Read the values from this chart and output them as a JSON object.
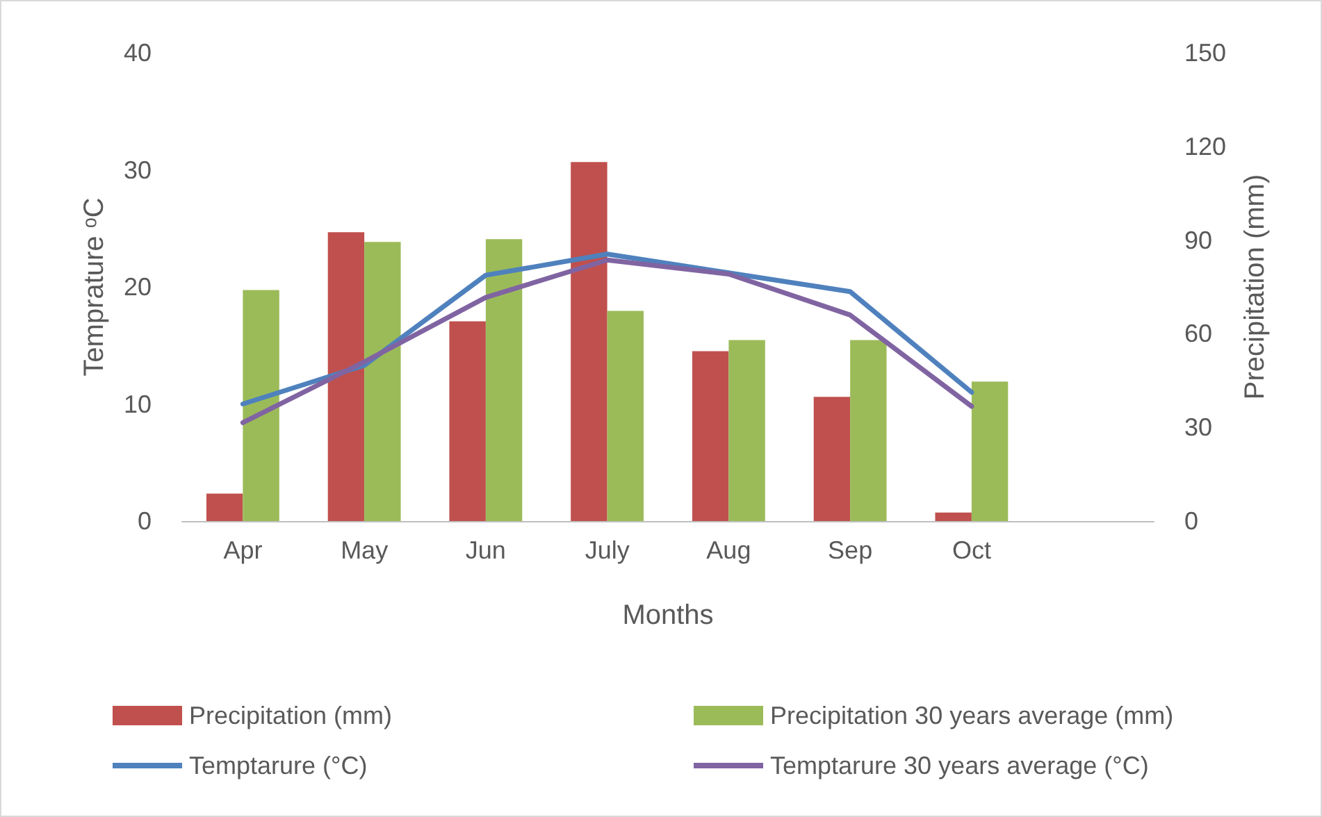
{
  "chart_data": {
    "type": "bar",
    "xlabel": "Months",
    "ylabel": "Temprature ᵒC",
    "y2label": "Precipitation (mm)",
    "categories": [
      "Apr",
      "May",
      "Jun",
      "July",
      "Aug",
      "Sep",
      "Oct",
      null
    ],
    "series": [
      {
        "name": "Precipitation (mm)",
        "axis": "y2",
        "color": "#c0504d",
        "values": [
          8.8,
          92.5,
          64,
          115,
          54.4,
          39.8,
          2.7,
          null
        ]
      },
      {
        "name": "Precipitation 30 years average (mm)",
        "axis": "y2",
        "color": "#9bbb59",
        "values": [
          74,
          89.4,
          90.3,
          67.3,
          58,
          58,
          44.7,
          null
        ]
      },
      {
        "name": "Temptarure (°C)",
        "type": "line",
        "color": "#4f81bd",
        "values": [
          10.0,
          13.3,
          21.0,
          22.8,
          21.2,
          19.6,
          11.0,
          null
        ]
      },
      {
        "name": "Temptarure 30 years average (°C)",
        "type": "line",
        "color": "#8064a2",
        "values": [
          8.4,
          13.6,
          19.1,
          22.3,
          21.1,
          17.6,
          9.8,
          null
        ]
      }
    ],
    "ylim": [
      0,
      40
    ],
    "yticks": [
      0,
      10,
      20,
      30,
      40
    ],
    "y2lim": [
      0,
      150
    ],
    "y2ticks": [
      0,
      30,
      60,
      90,
      120,
      150
    ],
    "grid": false,
    "legend": "bottom",
    "marker": "none",
    "line_style": "solid"
  }
}
